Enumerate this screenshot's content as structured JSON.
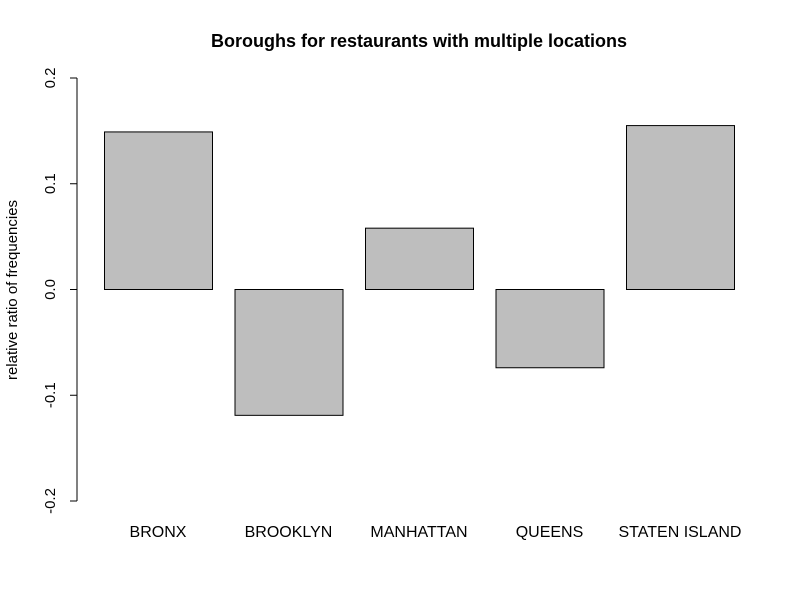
{
  "chart_data": {
    "type": "bar",
    "title": "Boroughs for restaurants with multiple locations",
    "xlabel": "",
    "ylabel": "relative ratio of frequencies",
    "categories": [
      "BRONX",
      "BROOKLYN",
      "MANHATTAN",
      "QUEENS",
      "STATEN ISLAND"
    ],
    "values": [
      0.149,
      -0.119,
      0.058,
      -0.074,
      0.155
    ],
    "ylim": [
      -0.2,
      0.2
    ],
    "yticks": [
      -0.2,
      -0.1,
      0.0,
      0.1,
      0.2
    ],
    "ytick_labels": [
      "-0.2",
      "-0.1",
      "0.0",
      "0.1",
      "0.2"
    ],
    "grid": false,
    "legend": "none",
    "bar_fill": "#bebebe",
    "bar_stroke": "#000000"
  }
}
